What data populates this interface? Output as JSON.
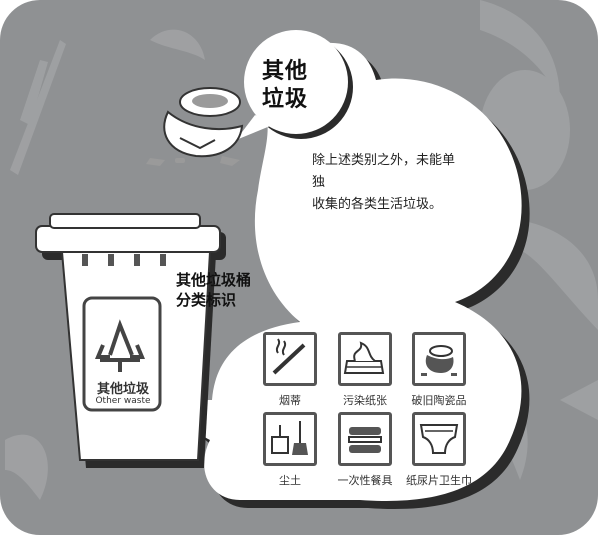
{
  "header": {
    "title_line1": "其他",
    "title_line2": "垃圾"
  },
  "description": {
    "line1": "除上述类别之外，未能单独",
    "line2": "收集的各类生活垃圾。"
  },
  "bin": {
    "title_line1": "其他垃圾桶",
    "title_line2": "分类标识",
    "label_cn": "其他垃圾",
    "label_en": "Other waste"
  },
  "items": [
    {
      "label": "烟蒂",
      "icon": "cigarette-icon"
    },
    {
      "label": "污染纸张",
      "icon": "tissue-box-icon"
    },
    {
      "label": "破旧陶瓷品",
      "icon": "broken-ceramics-icon"
    },
    {
      "label": "尘土",
      "icon": "dustpan-broom-icon"
    },
    {
      "label": "一次性餐具",
      "icon": "takeout-box-icon"
    },
    {
      "label": "纸尿片卫生巾",
      "icon": "diaper-icon"
    }
  ],
  "colors": {
    "background": "#8f9193",
    "panel": "#ffffff",
    "shadow": "#2b2b2b",
    "icon_stroke": "#555555"
  }
}
